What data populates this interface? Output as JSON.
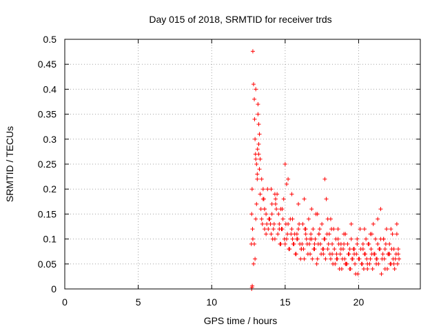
{
  "chart_data": {
    "type": "scatter",
    "title": "Day 015 of 2018, SRMTID for receiver trds",
    "xlabel": "GPS time / hours",
    "ylabel": "SRMTID / TECUs",
    "xlim": [
      0,
      24.2
    ],
    "ylim": [
      0,
      0.5
    ],
    "x_ticks": [
      0,
      5,
      10,
      15,
      20
    ],
    "y_ticks": [
      0,
      0.05,
      0.1,
      0.15,
      0.2,
      0.25,
      0.3,
      0.35,
      0.4,
      0.45,
      0.5
    ],
    "x_tick_labels": [
      "0",
      "5",
      "10",
      "15",
      "20"
    ],
    "y_tick_labels": [
      "0",
      "0.05",
      "0.1",
      "0.15",
      "0.2",
      "0.25",
      "0.3",
      "0.35",
      "0.4",
      "0.45",
      "0.5"
    ],
    "grid": true,
    "marker": "+",
    "series": [
      {
        "name": "SRMTID",
        "color": "#ff0000",
        "x": [
          12.7,
          12.72,
          12.75,
          12.78,
          12.8,
          12.85,
          12.9,
          12.92,
          12.95,
          12.98,
          13.0,
          13.05,
          13.1,
          13.12,
          13.15,
          13.2,
          13.25,
          13.3,
          13.35,
          13.4,
          13.45,
          13.5,
          13.6,
          13.7,
          13.8,
          13.9,
          14.0,
          14.1,
          14.2,
          14.3,
          14.4,
          14.5,
          14.6,
          14.7,
          14.8,
          14.9,
          15.0,
          15.1,
          15.2,
          15.3,
          15.4,
          15.5,
          15.6,
          15.7,
          15.8,
          15.9,
          16.0,
          16.1,
          16.2,
          16.3,
          16.4,
          16.5,
          16.6,
          16.7,
          16.8,
          16.9,
          17.0,
          17.1,
          17.2,
          17.3,
          17.4,
          17.5,
          17.6,
          17.7,
          17.8,
          17.9,
          18.0,
          18.1,
          18.2,
          18.3,
          18.4,
          18.5,
          18.6,
          18.7,
          18.8,
          18.9,
          19.0,
          19.1,
          19.2,
          19.3,
          19.4,
          19.5,
          19.6,
          19.7,
          19.8,
          19.9,
          20.0,
          20.1,
          20.2,
          20.3,
          20.4,
          20.5,
          20.6,
          20.7,
          20.8,
          20.9,
          21.0,
          21.1,
          21.2,
          21.3,
          21.4,
          21.5,
          21.6,
          21.7,
          21.8,
          21.9,
          22.0,
          22.1,
          22.2,
          22.3,
          22.4,
          22.5,
          22.6,
          22.7,
          12.8,
          12.85,
          12.9,
          12.95,
          13.0,
          13.05,
          13.1,
          13.15,
          13.2,
          13.25,
          13.3,
          13.4,
          13.5,
          13.55,
          13.6,
          13.7,
          13.75,
          13.85,
          13.95,
          14.05,
          14.15,
          14.25,
          14.35,
          14.45,
          14.55,
          14.65,
          14.75,
          14.85,
          14.95,
          15.05,
          15.15,
          15.25,
          15.35,
          15.45,
          15.55,
          15.65,
          15.75,
          15.85,
          15.95,
          16.05,
          16.15,
          16.25,
          16.35,
          16.45,
          16.55,
          16.65,
          16.75,
          16.85,
          16.95,
          17.05,
          17.15,
          17.25,
          17.35,
          17.45,
          17.55,
          17.65,
          17.75,
          17.85,
          17.95,
          18.05,
          18.15,
          18.25,
          18.35,
          18.45,
          18.55,
          18.65,
          18.75,
          18.85,
          18.95,
          19.05,
          19.15,
          19.25,
          19.35,
          19.45,
          19.55,
          19.65,
          19.75,
          19.85,
          19.95,
          20.05,
          20.15,
          20.25,
          20.35,
          20.45,
          20.55,
          20.65,
          20.75,
          20.85,
          20.95,
          21.05,
          21.15,
          21.25,
          21.35,
          21.45,
          21.55,
          21.65,
          21.75,
          21.85,
          21.95,
          22.05,
          22.15,
          22.25,
          22.35,
          22.45,
          22.55,
          22.65,
          22.75,
          13.0,
          13.2,
          13.6,
          13.9,
          14.1,
          14.3,
          14.6,
          14.8,
          15.0,
          15.2,
          15.5,
          15.8,
          16.1,
          16.4,
          16.7,
          17.0,
          17.3,
          17.6,
          17.9,
          18.2,
          18.5,
          18.8,
          19.1,
          19.4,
          19.7,
          20.0,
          20.3,
          20.6,
          20.9,
          21.2,
          21.5,
          21.8,
          22.1,
          22.4,
          22.7,
          12.72,
          12.74,
          12.76,
          14.05,
          14.35,
          14.7,
          15.1,
          15.45,
          15.9,
          16.3,
          16.8,
          17.2,
          17.7,
          18.1,
          18.6,
          19.0,
          19.5,
          19.9,
          20.4,
          20.8,
          21.3,
          21.7,
          22.2,
          22.6
        ],
        "y": [
          0.09,
          0.15,
          0.2,
          0.12,
          0.476,
          0.41,
          0.38,
          0.34,
          0.3,
          0.27,
          0.26,
          0.25,
          0.23,
          0.28,
          0.35,
          0.29,
          0.24,
          0.19,
          0.16,
          0.14,
          0.13,
          0.18,
          0.12,
          0.11,
          0.2,
          0.14,
          0.13,
          0.17,
          0.12,
          0.1,
          0.16,
          0.11,
          0.13,
          0.09,
          0.12,
          0.18,
          0.25,
          0.1,
          0.22,
          0.08,
          0.11,
          0.14,
          0.09,
          0.07,
          0.1,
          0.12,
          0.09,
          0.08,
          0.13,
          0.06,
          0.11,
          0.09,
          0.14,
          0.07,
          0.1,
          0.12,
          0.08,
          0.15,
          0.06,
          0.11,
          0.09,
          0.13,
          0.07,
          0.1,
          0.18,
          0.08,
          0.11,
          0.06,
          0.09,
          0.12,
          0.05,
          0.07,
          0.1,
          0.04,
          0.08,
          0.06,
          0.09,
          0.11,
          0.05,
          0.07,
          0.04,
          0.1,
          0.06,
          0.08,
          0.03,
          0.09,
          0.06,
          0.12,
          0.05,
          0.08,
          0.07,
          0.1,
          0.04,
          0.09,
          0.06,
          0.11,
          0.13,
          0.07,
          0.05,
          0.09,
          0.08,
          0.16,
          0.06,
          0.1,
          0.04,
          0.12,
          0.07,
          0.09,
          0.05,
          0.11,
          0.08,
          0.06,
          0.13,
          0.07,
          0.1,
          0.05,
          0.09,
          0.06,
          0.14,
          0.17,
          0.22,
          0.37,
          0.33,
          0.31,
          0.26,
          0.22,
          0.2,
          0.18,
          0.16,
          0.15,
          0.13,
          0.12,
          0.14,
          0.11,
          0.1,
          0.13,
          0.17,
          0.19,
          0.15,
          0.09,
          0.12,
          0.14,
          0.1,
          0.13,
          0.11,
          0.08,
          0.14,
          0.12,
          0.09,
          0.11,
          0.07,
          0.1,
          0.13,
          0.06,
          0.09,
          0.08,
          0.12,
          0.1,
          0.07,
          0.09,
          0.11,
          0.06,
          0.08,
          0.1,
          0.05,
          0.09,
          0.12,
          0.07,
          0.08,
          0.1,
          0.06,
          0.11,
          0.09,
          0.07,
          0.12,
          0.05,
          0.08,
          0.1,
          0.06,
          0.09,
          0.07,
          0.04,
          0.08,
          0.06,
          0.05,
          0.09,
          0.07,
          0.04,
          0.06,
          0.08,
          0.05,
          0.07,
          0.03,
          0.06,
          0.08,
          0.05,
          0.04,
          0.07,
          0.06,
          0.09,
          0.05,
          0.08,
          0.04,
          0.07,
          0.1,
          0.06,
          0.05,
          0.08,
          0.03,
          0.07,
          0.06,
          0.09,
          0.04,
          0.07,
          0.05,
          0.08,
          0.06,
          0.04,
          0.07,
          0.05,
          0.06,
          0.4,
          0.27,
          0.16,
          0.14,
          0.15,
          0.19,
          0.12,
          0.16,
          0.09,
          0.13,
          0.1,
          0.11,
          0.08,
          0.12,
          0.1,
          0.09,
          0.11,
          0.08,
          0.14,
          0.07,
          0.06,
          0.09,
          0.05,
          0.08,
          0.07,
          0.06,
          0.09,
          0.05,
          0.07,
          0.06,
          0.1,
          0.08,
          0.07,
          0.05,
          0.08,
          0.0,
          0.003,
          0.006,
          0.2,
          0.18,
          0.16,
          0.21,
          0.19,
          0.17,
          0.18,
          0.16,
          0.15,
          0.22,
          0.14,
          0.12,
          0.11,
          0.13,
          0.1,
          0.12,
          0.11,
          0.14,
          0.1,
          0.12,
          0.11
        ]
      }
    ]
  }
}
